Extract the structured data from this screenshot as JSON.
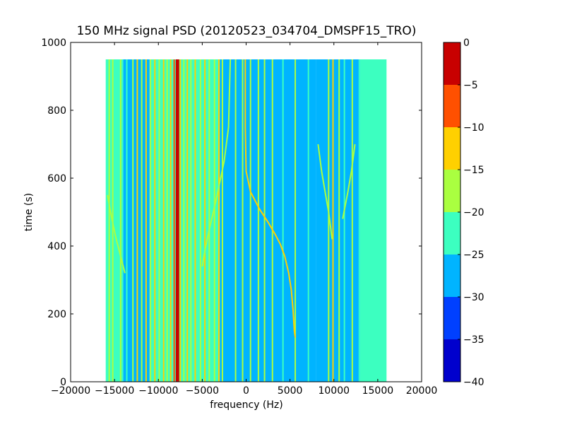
{
  "chart_data": {
    "type": "heatmap",
    "title": "150 MHz signal PSD (20120523_034704_DMSPF15_TRO)",
    "xlabel": "frequency (Hz)",
    "ylabel": "time (s)",
    "xlim": [
      -20000,
      20000
    ],
    "ylim": [
      0,
      1000
    ],
    "x_ticks": [
      -20000,
      -15000,
      -10000,
      -5000,
      0,
      5000,
      10000,
      15000,
      20000
    ],
    "x_tick_labels": [
      "−20000",
      "−15000",
      "−10000",
      "−5000",
      "0",
      "5000",
      "10000",
      "15000",
      "20000"
    ],
    "y_ticks": [
      0,
      200,
      400,
      600,
      800,
      1000
    ],
    "y_tick_labels": [
      "0",
      "200",
      "400",
      "600",
      "800",
      "1000"
    ],
    "data_extent": {
      "x": [
        -16000,
        16000
      ],
      "y": [
        0,
        950
      ]
    },
    "colorbar": {
      "levels": [
        -40,
        -35,
        -30,
        -25,
        -20,
        -15,
        -10,
        -5,
        0
      ],
      "tick_labels": [
        "−40",
        "−35",
        "−30",
        "−25",
        "−20",
        "−15",
        "−10",
        "−5",
        "0"
      ],
      "colors": [
        "#0000cd",
        "#0040ff",
        "#00b4ff",
        "#3cffc0",
        "#aaff40",
        "#ffd000",
        "#ff5000",
        "#c80000"
      ]
    },
    "background_regions": [
      {
        "x": [
          -16000,
          -14000
        ],
        "level": -25
      },
      {
        "x": [
          -14000,
          -11000
        ],
        "level": -30
      },
      {
        "x": [
          -11000,
          -3000
        ],
        "level": -25
      },
      {
        "x": [
          -3000,
          0
        ],
        "level": -30
      },
      {
        "x": [
          0,
          8000
        ],
        "level": -30
      },
      {
        "x": [
          8000,
          13000
        ],
        "level": -30
      },
      {
        "x": [
          13000,
          16000
        ],
        "level": -25
      }
    ],
    "vertical_lines": [
      {
        "x": -15600,
        "level": -20
      },
      {
        "x": -15200,
        "level": -20
      },
      {
        "x": -14300,
        "level": -20
      },
      {
        "x": -13600,
        "level": -25
      },
      {
        "x": -12900,
        "level": -20
      },
      {
        "x": -12400,
        "level": -15
      },
      {
        "x": -11900,
        "level": -20
      },
      {
        "x": -11400,
        "level": -15
      },
      {
        "x": -10900,
        "level": -20
      },
      {
        "x": -10400,
        "level": -15
      },
      {
        "x": -9900,
        "level": -20
      },
      {
        "x": -9400,
        "level": -15
      },
      {
        "x": -9000,
        "level": -20
      },
      {
        "x": -8600,
        "level": -15
      },
      {
        "x": -8200,
        "level": -10
      },
      {
        "x": -7900,
        "level": -5
      },
      {
        "x": -7750,
        "level": 0
      },
      {
        "x": -7500,
        "level": -15
      },
      {
        "x": -7100,
        "level": -20
      },
      {
        "x": -6700,
        "level": -15
      },
      {
        "x": -6300,
        "level": -20
      },
      {
        "x": -5800,
        "level": -15
      },
      {
        "x": -5200,
        "level": -20
      },
      {
        "x": -4700,
        "level": -15
      },
      {
        "x": -4200,
        "level": -20
      },
      {
        "x": -3600,
        "level": -20
      },
      {
        "x": -3100,
        "level": -15
      },
      {
        "x": -2700,
        "level": -20
      },
      {
        "x": -1200,
        "level": -20
      },
      {
        "x": -400,
        "level": -20
      },
      {
        "x": 500,
        "level": -20
      },
      {
        "x": 1400,
        "level": -20
      },
      {
        "x": 2100,
        "level": -20
      },
      {
        "x": 3000,
        "level": -20
      },
      {
        "x": 4200,
        "level": -25
      },
      {
        "x": 5600,
        "level": -20
      },
      {
        "x": 7100,
        "level": -25
      },
      {
        "x": 9400,
        "level": -20
      },
      {
        "x": 9900,
        "level": -15
      },
      {
        "x": 10600,
        "level": -20
      },
      {
        "x": 11200,
        "level": -25
      },
      {
        "x": 12100,
        "level": -20
      },
      {
        "x": 12900,
        "level": -25
      }
    ],
    "curved_traces": [
      {
        "level": -15,
        "points": [
          [
            -100,
            950
          ],
          [
            -100,
            750
          ],
          [
            0,
            620
          ],
          [
            500,
            560
          ],
          [
            1500,
            510
          ],
          [
            2500,
            470
          ],
          [
            3300,
            435
          ],
          [
            3900,
            405
          ],
          [
            4400,
            370
          ],
          [
            4850,
            320
          ],
          [
            5150,
            270
          ],
          [
            5350,
            210
          ],
          [
            5500,
            150
          ],
          [
            5600,
            130
          ]
        ]
      },
      {
        "level": -20,
        "points": [
          [
            -1800,
            950
          ],
          [
            -2000,
            750
          ],
          [
            -2500,
            650
          ],
          [
            -3300,
            550
          ],
          [
            -4100,
            460
          ],
          [
            -4600,
            400
          ],
          [
            -5000,
            340
          ]
        ]
      },
      {
        "level": -20,
        "points": [
          [
            -15800,
            550
          ],
          [
            -15300,
            480
          ],
          [
            -14800,
            420
          ],
          [
            -14300,
            370
          ],
          [
            -13800,
            320
          ]
        ]
      },
      {
        "level": -20,
        "points": [
          [
            8200,
            700
          ],
          [
            8600,
            620
          ],
          [
            9000,
            560
          ],
          [
            9400,
            500
          ],
          [
            9800,
            420
          ]
        ]
      },
      {
        "level": -20,
        "points": [
          [
            12400,
            700
          ],
          [
            12000,
            620
          ],
          [
            11600,
            560
          ],
          [
            11000,
            480
          ]
        ]
      }
    ]
  }
}
